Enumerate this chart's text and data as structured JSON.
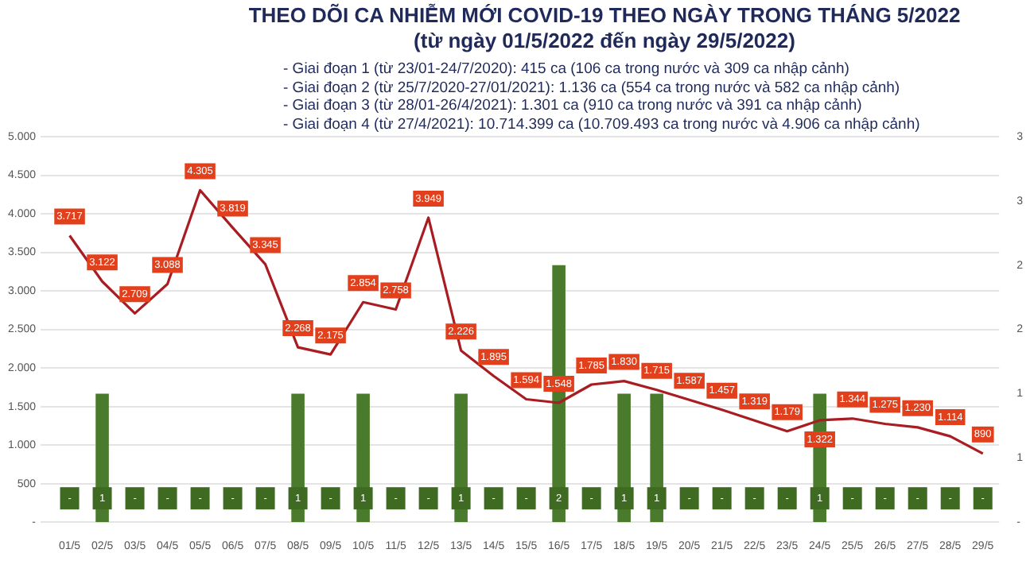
{
  "chart_data": {
    "type": "bar",
    "title": "THEO DÕI CA NHIỄM MỚI COVID-19 THEO NGÀY TRONG THÁNG 5/2022",
    "subtitle": "(từ ngày 01/5/2022 đến ngày 29/5/2022)",
    "annotations": [
      "- Giai đoạn 1 (từ 23/01-24/7/2020): 415 ca (106 ca trong nước và 309 ca nhập cảnh)",
      "- Giai đoạn 2 (từ 25/7/2020-27/01/2021): 1.136 ca (554 ca trong nước và 582 ca nhập cảnh)",
      "- Giai đoạn 3 (từ 28/01-26/4/2021): 1.301 ca (910 ca trong nước và 391 ca nhập cảnh)",
      "- Giai đoạn 4 (từ 27/4/2021): 10.714.399 ca (10.709.493 ca trong nước và 4.906 ca nhập cảnh)"
    ],
    "categories": [
      "01/5",
      "02/5",
      "03/5",
      "04/5",
      "05/5",
      "06/5",
      "07/5",
      "08/5",
      "09/5",
      "10/5",
      "11/5",
      "12/5",
      "13/5",
      "14/5",
      "15/5",
      "16/5",
      "17/5",
      "18/5",
      "19/5",
      "20/5",
      "21/5",
      "22/5",
      "23/5",
      "24/5",
      "25/5",
      "26/5",
      "27/5",
      "28/5",
      "29/5"
    ],
    "series": [
      {
        "axis": "y2",
        "color": "#4a7b2c",
        "values": [
          0,
          1,
          0,
          0,
          0,
          0,
          0,
          1,
          0,
          1,
          0,
          0,
          1,
          0,
          0,
          2,
          0,
          1,
          1,
          0,
          0,
          0,
          0,
          1,
          0,
          0,
          0,
          0,
          0
        ],
        "value_labels": [
          "-",
          "1",
          "-",
          "-",
          "-",
          "-",
          "-",
          "1",
          "-",
          "1",
          "-",
          "-",
          "1",
          "-",
          "-",
          "2",
          "-",
          "1",
          "1",
          "-",
          "-",
          "-",
          "-",
          "1",
          "-",
          "-",
          "-",
          "-",
          "-"
        ]
      },
      {
        "type": "line",
        "color": "#a81c22",
        "values": [
          3717,
          3122,
          2709,
          3088,
          4305,
          3819,
          3345,
          2268,
          2175,
          2854,
          2758,
          3949,
          2226,
          1895,
          1594,
          1548,
          1785,
          1830,
          1715,
          1587,
          1457,
          1319,
          1179,
          1322,
          1344,
          1275,
          1230,
          1114,
          890
        ],
        "value_labels": [
          "3.717",
          "3.122",
          "2.709",
          "3.088",
          "4.305",
          "3.819",
          "3.345",
          "2.268",
          "2.175",
          "2.854",
          "2.758",
          "3.949",
          "2.226",
          "1.895",
          "1.594",
          "1.548",
          "1.785",
          "1.830",
          "1.715",
          "1.587",
          "1.457",
          "1.319",
          "1.179",
          "1.322",
          "1.344",
          "1.275",
          "1.230",
          "1.114",
          "890"
        ]
      }
    ],
    "ylim": [
      0,
      5000
    ],
    "yticks": [
      {
        "value": 0,
        "label": "-"
      },
      500,
      {
        "value": 1000,
        "label": "1.000"
      },
      {
        "value": 1500,
        "label": "1.500"
      },
      {
        "value": 2000,
        "label": "2.000"
      },
      {
        "value": 2500,
        "label": "2.500"
      },
      {
        "value": 3000,
        "label": "3.000"
      },
      {
        "value": 3500,
        "label": "3.500"
      },
      {
        "value": 4000,
        "label": "4.000"
      },
      {
        "value": 4500,
        "label": "4.500"
      },
      {
        "value": 5000,
        "label": "5.000"
      }
    ],
    "y2lim": [
      0,
      3
    ],
    "y2ticks": [
      {
        "value": 0,
        "label": "-"
      },
      {
        "value": 0.5,
        "label": "1"
      },
      {
        "value": 1,
        "label": "1"
      },
      {
        "value": 1.5,
        "label": "2"
      },
      {
        "value": 2,
        "label": "2"
      },
      {
        "value": 2.5,
        "label": "3"
      },
      {
        "value": 3,
        "label": "3"
      }
    ],
    "grid": "y",
    "legend": false,
    "marker": "none"
  }
}
